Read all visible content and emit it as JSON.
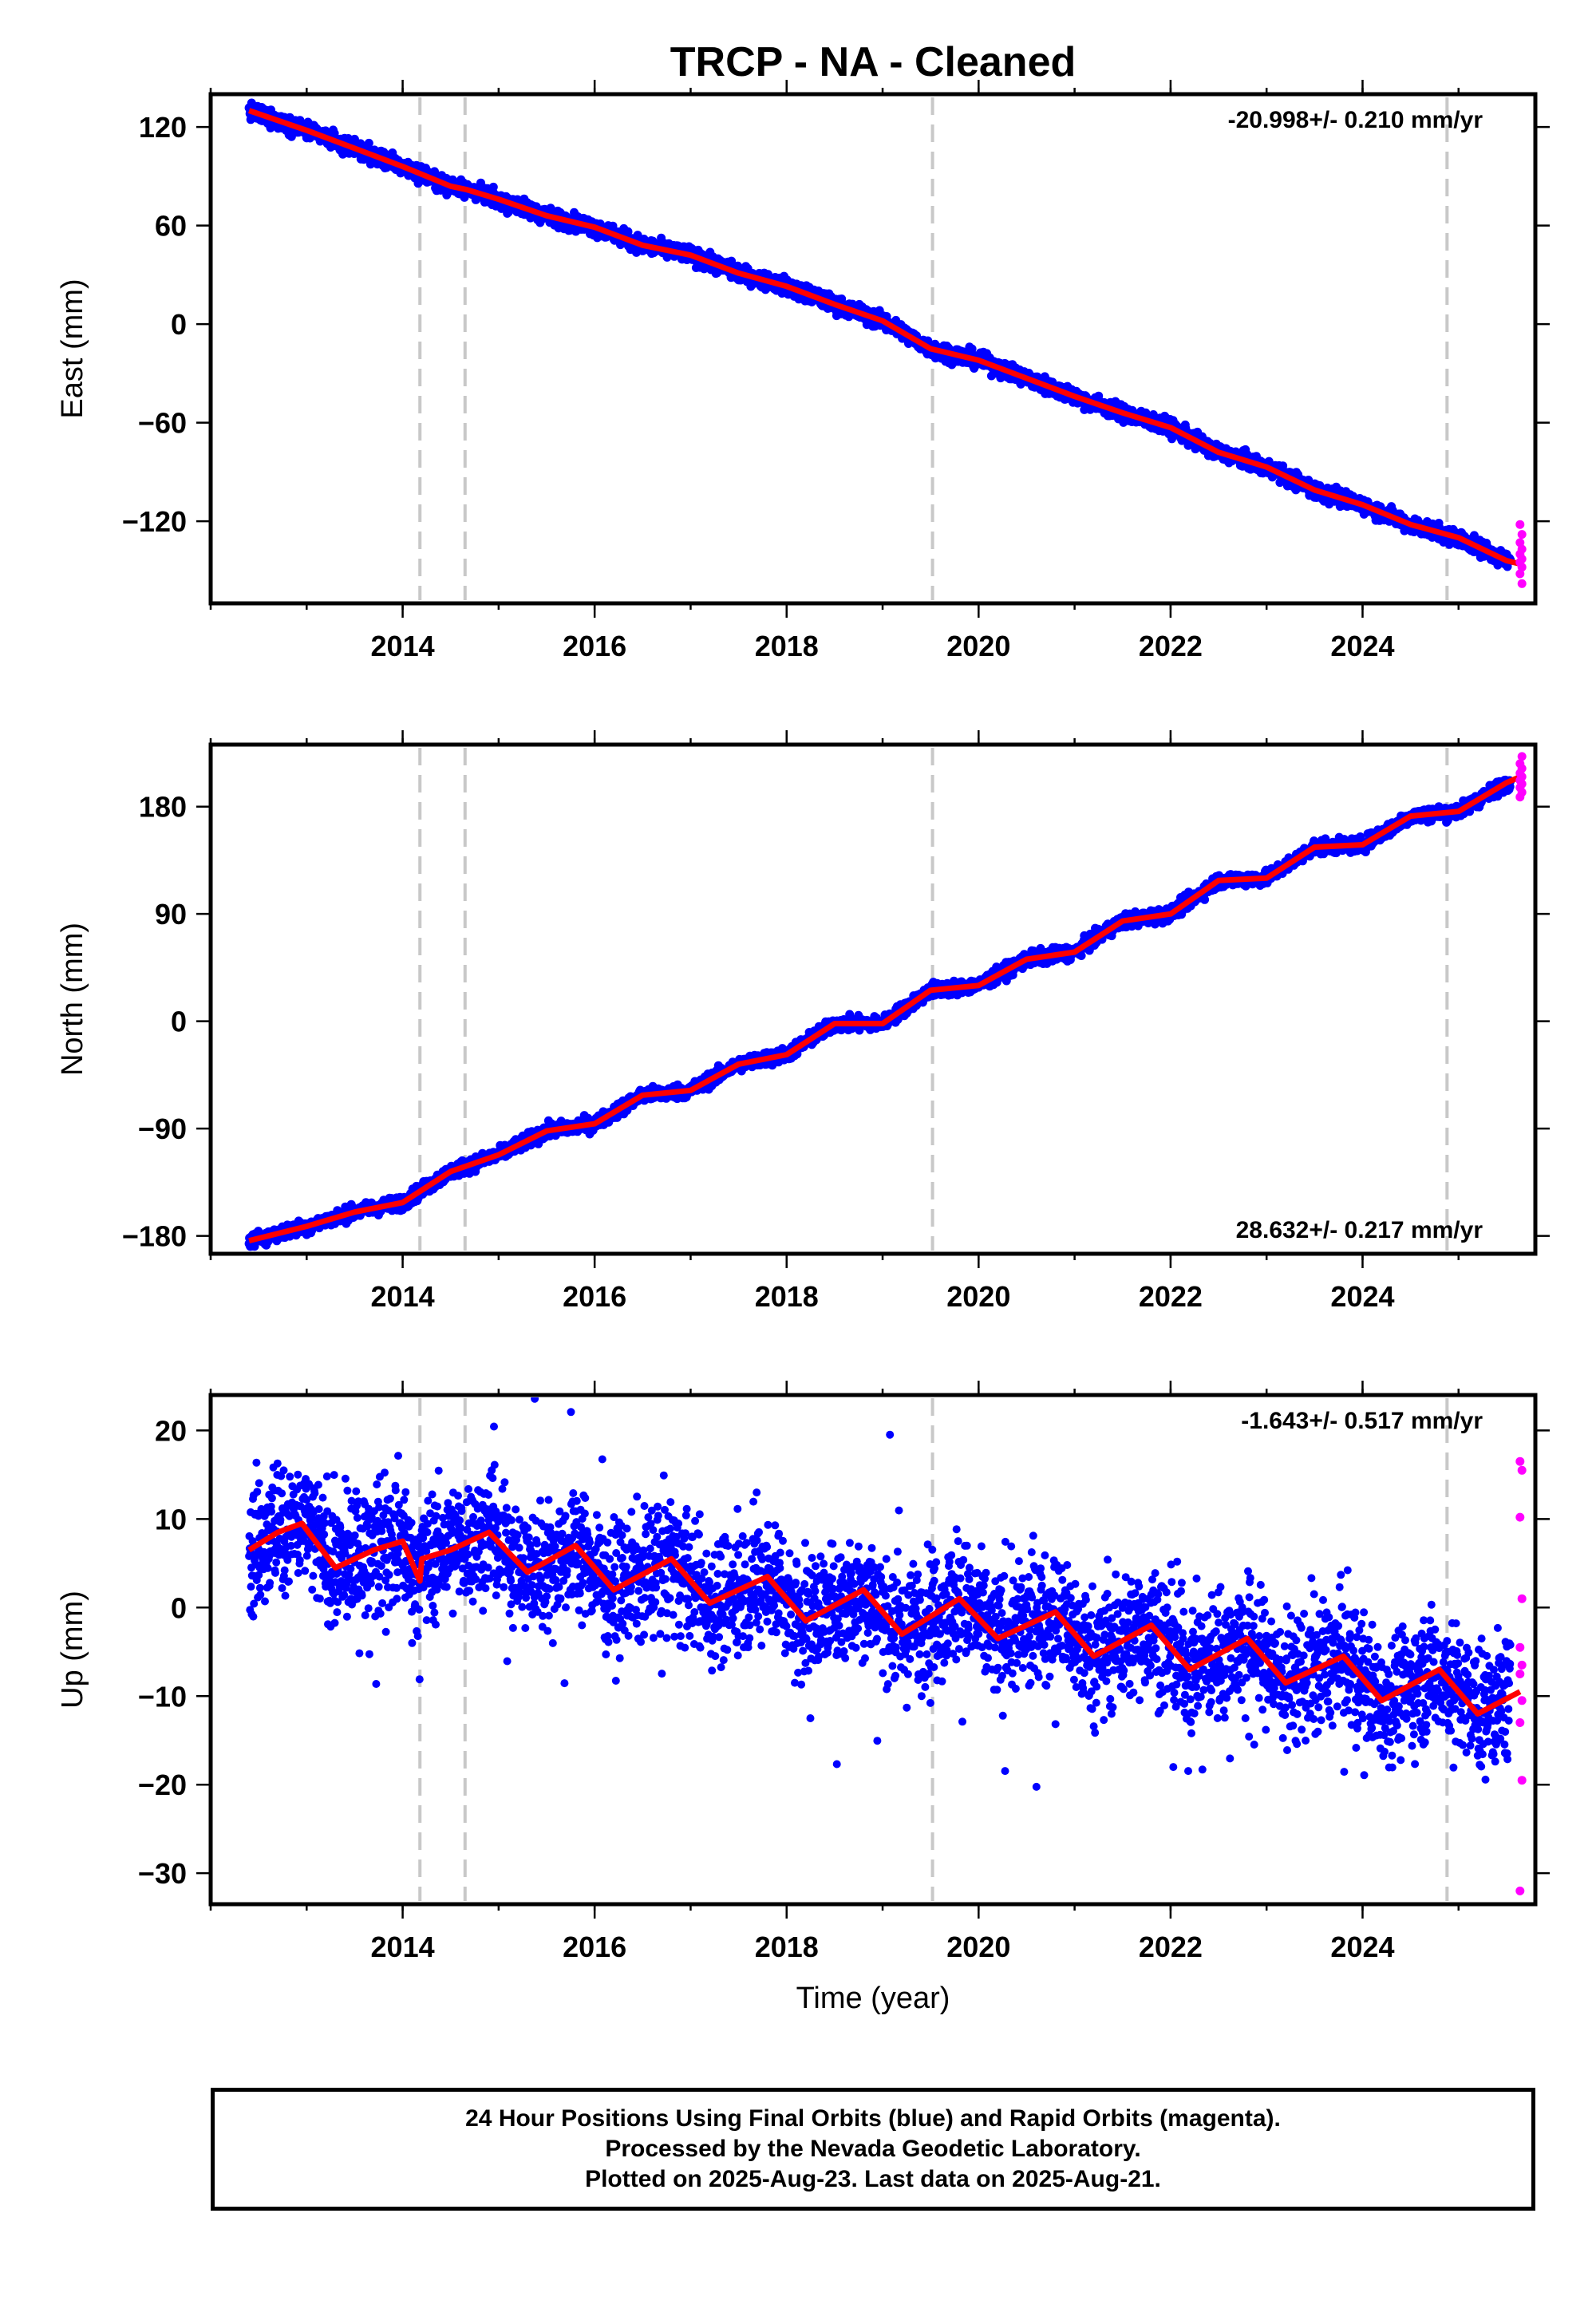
{
  "colors": {
    "final_orbit_points": "#0000ff",
    "rapid_orbit_points": "#ff00ff",
    "model_fit": "#ff0000",
    "event_lines": "#c8c8c8"
  },
  "chart_data": {
    "title": "TRCP  - NA - Cleaned",
    "xlabel": "Time (year)",
    "x_ticks": [
      "2014",
      "2016",
      "2018",
      "2020",
      "2022",
      "2024"
    ],
    "x_range": [
      2012.0,
      2025.8
    ],
    "event_lines": [
      2014.18,
      2014.65,
      2019.52,
      2024.88
    ],
    "last_point_date": 2025.64,
    "panels": [
      {
        "name": "east",
        "type": "scatter",
        "ylabel": "East (mm)",
        "y_ticks": [
          "120",
          "60",
          "0",
          "−60",
          "−120"
        ],
        "y_tick_values": [
          120,
          60,
          0,
          -60,
          -120
        ],
        "ylim": [
          -170,
          140
        ],
        "rate": "-20.998+/- 0.210 mm/yr",
        "rate_position": "top-right",
        "series": [
          {
            "type": "line",
            "x": [
              2012.4,
              2013.0,
              2013.5,
              2014.0,
              2014.5,
              2014.66,
              2015.0,
              2015.5,
              2016.0,
              2016.5,
              2017.0,
              2017.5,
              2018.0,
              2018.5,
              2019.0,
              2019.5,
              2020.0,
              2020.5,
              2021.0,
              2021.5,
              2022.0,
              2022.5,
              2023.0,
              2023.5,
              2024.0,
              2024.5,
              2025.0,
              2025.5,
              2025.64
            ],
            "y": [
              130,
              118,
              107,
              96,
              84,
              82,
              76,
              66,
              59,
              48,
              42,
              31,
              23,
              12,
              2,
              -15,
              -22,
              -33,
              -44,
              -54,
              -63,
              -78,
              -87,
              -101,
              -110,
              -122,
              -130,
              -144,
              -146
            ]
          }
        ],
        "noise_mm": 2.5,
        "rapid_y": [
          -122,
          -128,
          -133,
          -137,
          -140,
          -143,
          -145,
          -148,
          -152,
          -158
        ]
      },
      {
        "name": "north",
        "type": "scatter",
        "ylabel": "North (mm)",
        "y_ticks": [
          "180",
          "90",
          "0",
          "−90",
          "−180"
        ],
        "y_tick_values": [
          180,
          90,
          0,
          -90,
          -180
        ],
        "ylim": [
          -195,
          232
        ],
        "rate": "28.632+/- 0.217 mm/yr",
        "rate_position": "bottom-right",
        "series": [
          {
            "type": "line",
            "x": [
              2012.4,
              2013.0,
              2013.5,
              2014.0,
              2014.5,
              2015.0,
              2015.5,
              2016.0,
              2016.5,
              2017.0,
              2017.5,
              2018.0,
              2018.5,
              2019.0,
              2019.5,
              2020.0,
              2020.5,
              2021.0,
              2021.5,
              2022.0,
              2022.5,
              2023.0,
              2023.5,
              2024.0,
              2024.5,
              2025.0,
              2025.5,
              2025.64
            ],
            "y": [
              -184,
              -172,
              -160,
              -152,
              -126,
              -112,
              -92,
              -86,
              -62,
              -58,
              -36,
              -28,
              -2,
              -2,
              26,
              30,
              52,
              58,
              84,
              90,
              118,
              120,
              146,
              148,
              172,
              176,
              200,
              205
            ]
          }
        ],
        "noise_mm": 3,
        "rapid_y": [
          188,
          192,
          196,
          199,
          202,
          205,
          208,
          212,
          216,
          222
        ]
      },
      {
        "name": "up",
        "type": "scatter",
        "ylabel": "Up (mm)",
        "y_ticks": [
          "20",
          "10",
          "0",
          "−10",
          "−20",
          "−30"
        ],
        "y_tick_values": [
          20,
          10,
          0,
          -10,
          -20,
          -30
        ],
        "ylim": [
          -33.5,
          24
        ],
        "rate": "-1.643+/- 0.517 mm/yr",
        "rate_position": "top-right",
        "series": [
          {
            "type": "line",
            "x": [
              2012.4,
              2012.7,
              2012.95,
              2013.3,
              2013.7,
              2014.0,
              2014.18,
              2014.2,
              2014.5,
              2014.9,
              2015.3,
              2015.8,
              2016.2,
              2016.8,
              2017.2,
              2017.8,
              2018.2,
              2018.8,
              2019.2,
              2019.8,
              2020.2,
              2020.8,
              2021.2,
              2021.8,
              2022.2,
              2022.8,
              2023.2,
              2023.8,
              2024.2,
              2024.8,
              2025.2,
              2025.64
            ],
            "y": [
              6.5,
              8.5,
              9.5,
              4.5,
              6.5,
              7.5,
              3.0,
              5.5,
              6.5,
              8.5,
              4.0,
              7.0,
              2.0,
              5.5,
              0.5,
              3.5,
              -1.5,
              2.0,
              -3.0,
              1.0,
              -3.5,
              -0.5,
              -5.5,
              -2.0,
              -7.0,
              -3.5,
              -8.5,
              -5.5,
              -10.5,
              -7.0,
              -12.0,
              -9.5
            ]
          }
        ],
        "noise_mm": 3.5,
        "rapid_y": [
          16.5,
          15.5,
          10.2,
          1.0,
          -4.5,
          -6.5,
          -7.5,
          -10.5,
          -13.0,
          -19.5,
          -32.0
        ]
      }
    ],
    "footer": [
      "24 Hour Positions Using Final Orbits (blue) and Rapid Orbits (magenta).",
      "Processed by the Nevada Geodetic Laboratory.",
      "Plotted on 2025-Aug-23. Last data on 2025-Aug-21."
    ]
  }
}
